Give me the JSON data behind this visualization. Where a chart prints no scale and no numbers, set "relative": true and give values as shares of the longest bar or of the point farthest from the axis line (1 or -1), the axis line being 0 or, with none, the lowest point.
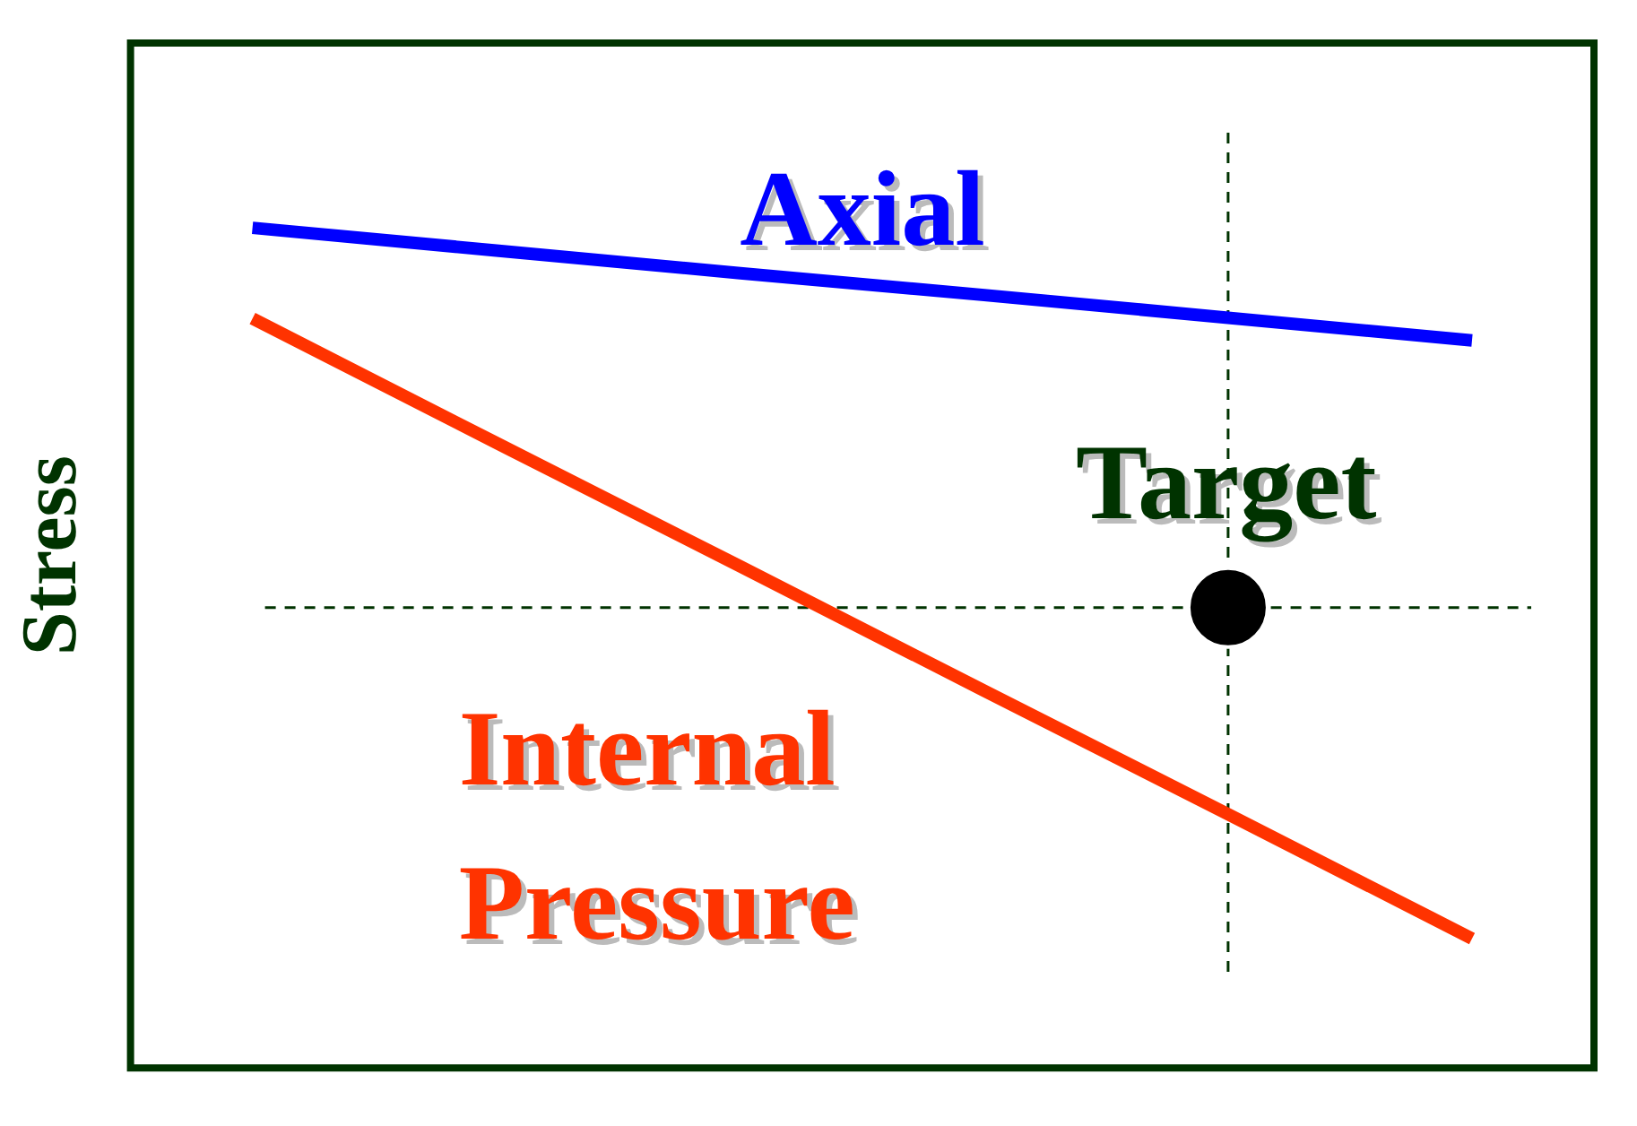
{
  "chart_data": {
    "type": "line",
    "relative": true,
    "ylabel": "Stress",
    "grid": false,
    "legend": false,
    "marker": "none",
    "line_style": "solid",
    "categories": [
      null,
      null,
      null,
      null,
      null,
      null
    ],
    "series": [
      {
        "name": "Axial",
        "color": "#0000ff",
        "values": [
          1,
          0.973,
          0.946,
          0.92,
          0.893,
          0.866
        ]
      },
      {
        "name": "Internal Pressure",
        "color": "#ff3300",
        "values": [
          0.892,
          0.744,
          0.597,
          0.449,
          0.302,
          0.154
        ]
      },
      {
        "name": "Target",
        "color": "#000000",
        "marker": "circle",
        "values": [
          null,
          null,
          null,
          null,
          0.548,
          null
        ]
      }
    ],
    "ref_lines": [
      {
        "axis": "y",
        "value": 0.548,
        "color": "#003300",
        "line_style": "dashed"
      }
    ]
  }
}
